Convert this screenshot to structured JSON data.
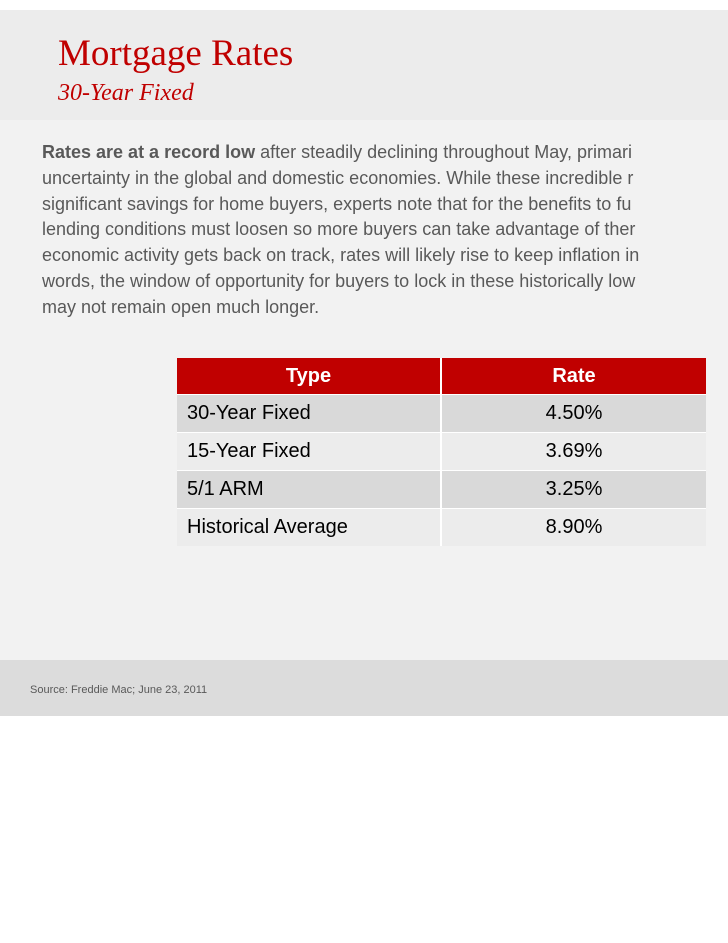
{
  "slide": {
    "title": "Mortgage Rates",
    "subtitle": "30-Year Fixed",
    "body": {
      "lead": "Rates are at a record low",
      "lines": [
        " after steadily declining throughout May, primari",
        "uncertainty in the global and domestic economies. While these incredible r",
        "significant savings for home buyers, experts note that for the benefits to fu",
        "lending conditions must loosen so more buyers can take advantage of ther",
        "economic activity gets back on track, rates will likely rise to keep inflation in",
        "words, the window of opportunity for buyers to lock in these historically low",
        "may not remain open much longer."
      ]
    },
    "table": {
      "headers": [
        "Type",
        "Rate"
      ],
      "rows": [
        {
          "type": "30-Year Fixed",
          "rate": "4.50%"
        },
        {
          "type": "15-Year Fixed",
          "rate": "3.69%"
        },
        {
          "type": "5/1 ARM",
          "rate": "3.25%"
        },
        {
          "type": "Historical Average",
          "rate": "8.90%"
        }
      ]
    },
    "source": "Source: Freddie Mac; June 23, 2011"
  },
  "colors": {
    "accent": "#c00000",
    "text": "#595959"
  }
}
